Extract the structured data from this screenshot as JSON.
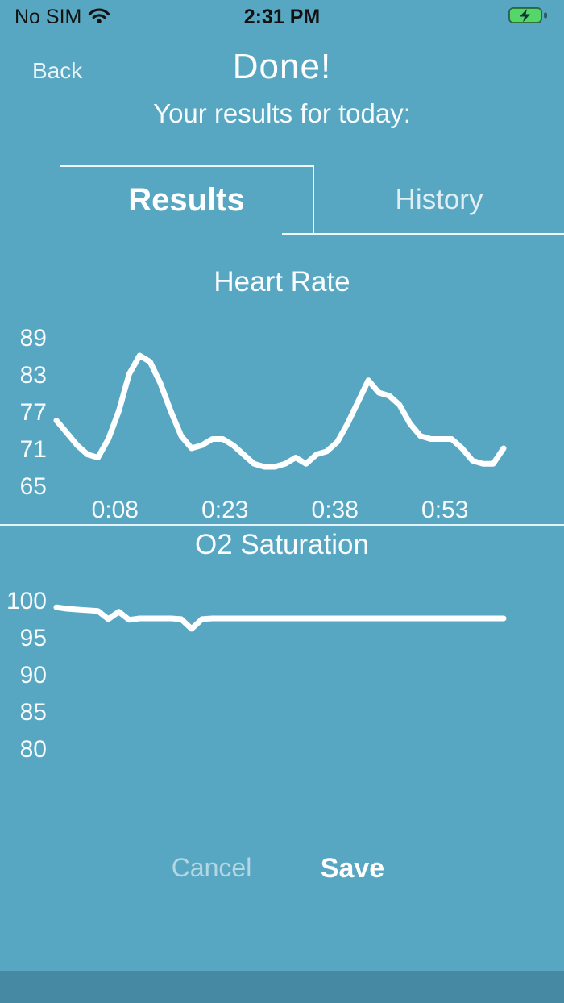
{
  "status_bar": {
    "carrier": "No SIM",
    "time": "2:31 PM",
    "wifi_icon": "wifi-icon",
    "battery_icon": "battery-charging-icon"
  },
  "nav": {
    "back_label": "Back",
    "title": "Done!",
    "subtitle": "Your results for today:"
  },
  "tabs": {
    "results_label": "Results",
    "history_label": "History",
    "selected": "Results"
  },
  "actions": {
    "cancel_label": "Cancel",
    "save_label": "Save"
  },
  "colors": {
    "background": "#58a7c2",
    "footer_strip": "#4689a3",
    "chart_line": "#ffffff",
    "battery_green": "#53d769",
    "status_text": "#111111"
  },
  "chart_data": [
    {
      "type": "line",
      "title": "Heart Rate",
      "xlabel": "",
      "ylabel": "",
      "ylim": [
        65,
        89
      ],
      "yticks": [
        89,
        83,
        77,
        71,
        65
      ],
      "xticks": [
        {
          "label": "0:08",
          "value": 8
        },
        {
          "label": "0:23",
          "value": 23
        },
        {
          "label": "0:38",
          "value": 38
        },
        {
          "label": "0:53",
          "value": 53
        }
      ],
      "x_range": [
        0,
        61
      ],
      "x_unit": "mm:ss elapsed",
      "grid": false,
      "legend": "none",
      "values": [
        75.5,
        73.5,
        71.5,
        70,
        69.5,
        72.5,
        77,
        83,
        86,
        85,
        81.5,
        77,
        73,
        71,
        71.5,
        72.5,
        72.5,
        71.5,
        70,
        68.5,
        68,
        68,
        68.5,
        69.5,
        68.5,
        70,
        70.5,
        72,
        75,
        78.5,
        82,
        80,
        79.5,
        78,
        75,
        73,
        72.5,
        72.5,
        72.5,
        71,
        69,
        68.5,
        68.5,
        71
      ]
    },
    {
      "type": "line",
      "title": "O2 Saturation",
      "xlabel": "",
      "ylabel": "",
      "ylim": [
        80,
        100
      ],
      "yticks": [
        100,
        95,
        90,
        85,
        80
      ],
      "xticks": [],
      "x_range": [
        0,
        61
      ],
      "x_unit": "mm:ss elapsed",
      "grid": false,
      "legend": "none",
      "values": [
        99,
        98.8,
        98.7,
        98.6,
        98.5,
        97.4,
        98.4,
        97.3,
        97.5,
        97.5,
        97.5,
        97.5,
        97.4,
        96.1,
        97.4,
        97.5,
        97.5,
        97.5,
        97.5,
        97.5,
        97.5,
        97.5,
        97.5,
        97.5,
        97.5,
        97.5,
        97.5,
        97.5,
        97.5,
        97.5,
        97.5,
        97.5,
        97.5,
        97.5,
        97.5,
        97.5,
        97.5,
        97.5,
        97.5,
        97.5,
        97.5,
        97.5,
        97.5,
        97.5
      ]
    }
  ]
}
